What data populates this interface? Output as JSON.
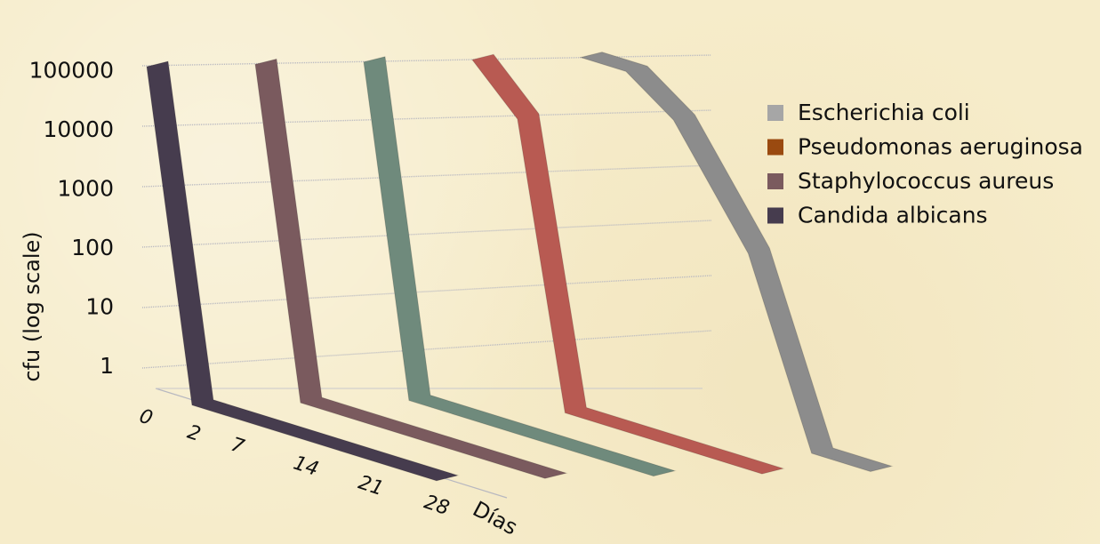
{
  "chart_data": {
    "type": "line",
    "style": "3d-ribbon",
    "ylabel": "cfu (log scale)",
    "xlabel": "Días",
    "yscale": "log",
    "ytick_labels": [
      "1",
      "10",
      "100",
      "1000",
      "10000",
      "100000"
    ],
    "ylim": [
      1,
      100000
    ],
    "x": [
      "0",
      "2",
      "7",
      "14",
      "21",
      "28"
    ],
    "series": [
      {
        "name": "Escherichia coli",
        "values": [
          100000,
          100000,
          30000,
          600,
          1,
          1
        ]
      },
      {
        "name": "Pseudomonas aeruginosa",
        "values": [
          100000,
          20000,
          1,
          1,
          1,
          1
        ]
      },
      {
        "name": "Staphylococcus aureus",
        "values": [
          100000,
          1,
          1,
          1,
          1,
          1
        ]
      },
      {
        "name": "Candida albicans",
        "values": [
          100000,
          1,
          1,
          1,
          1,
          1
        ]
      }
    ],
    "unlabeled_series": [
      {
        "values": [
          100000,
          1,
          1,
          1,
          1,
          1
        ]
      }
    ],
    "legend_position": "right",
    "grid": true
  },
  "colors": {
    "Escherichia coli": "#8c8c8c",
    "Pseudomonas aeruginosa": "#b85a52",
    "Staphylococcus aureus": "#7a5a5e",
    "Candida albicans": "#463c4e",
    "unlabeled": "#6f8a7c",
    "legend_swatch": [
      "#a6a6a6",
      "#9a4a10",
      "#7a5a5e",
      "#463c4e"
    ]
  }
}
